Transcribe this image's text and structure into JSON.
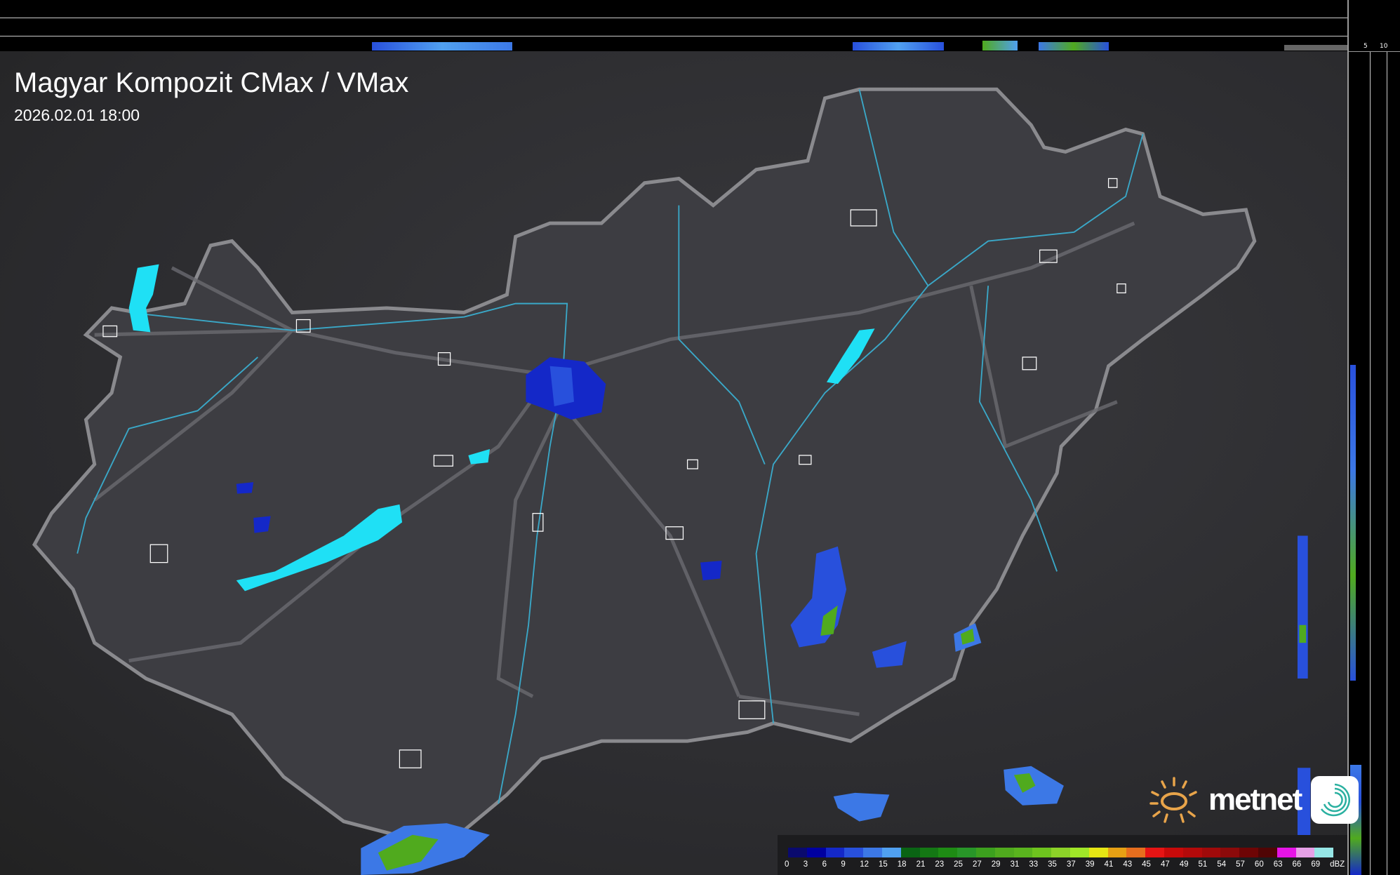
{
  "header": {
    "title": "Magyar Kompozit CMax / VMax",
    "timestamp": "2026.02.01 18:00"
  },
  "profile_ticks": {
    "top": [
      "10",
      "5"
    ],
    "right": [
      "5",
      "10"
    ]
  },
  "logo": {
    "text": "metnet",
    "icon": "sun-icon",
    "app_icon": "spiral-icon"
  },
  "colors": {
    "water": "#1fe0f5",
    "border": "#8a8a8e",
    "river": "#3aa8c8",
    "city": "#ffffff"
  },
  "legend": {
    "unit": "dBZ",
    "labels": [
      "0",
      "3",
      "6",
      "9",
      "12",
      "15",
      "18",
      "21",
      "23",
      "25",
      "27",
      "29",
      "31",
      "33",
      "35",
      "37",
      "39",
      "41",
      "43",
      "45",
      "47",
      "49",
      "51",
      "54",
      "57",
      "60",
      "63",
      "66",
      "69"
    ],
    "colors": [
      "#0a0a6e",
      "#0000a0",
      "#1428c8",
      "#2850dc",
      "#3c78e6",
      "#50a0f0",
      "#0a6414",
      "#147814",
      "#1e8c14",
      "#289628",
      "#3ca01e",
      "#50aa1e",
      "#5ab41e",
      "#6ec31e",
      "#8cd228",
      "#a0e628",
      "#e6e614",
      "#e6a014",
      "#e66e1e",
      "#e61414",
      "#c80a0a",
      "#b40a0a",
      "#a00a0a",
      "#8c0a0a",
      "#6e0505",
      "#500505",
      "#e614e6",
      "#e6a0e6",
      "#96e6e6"
    ]
  }
}
